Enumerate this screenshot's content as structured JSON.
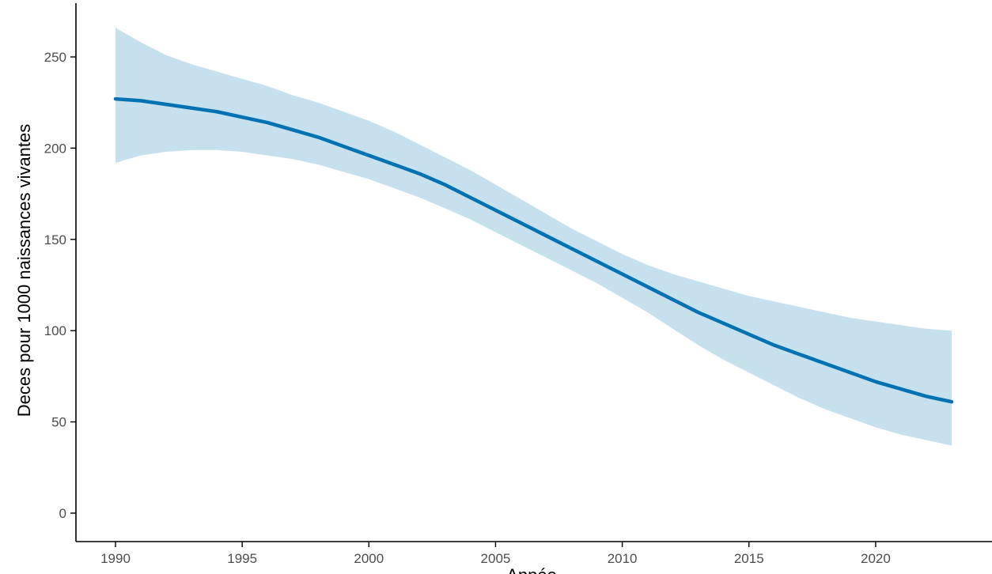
{
  "chart_data": {
    "type": "line",
    "title": "",
    "xlabel": "Année",
    "ylabel": "Deces pour 1000 naissances vivantes",
    "xlim": [
      1990,
      2023
    ],
    "ylim": [
      0,
      265
    ],
    "x_ticks": [
      1990,
      1995,
      2000,
      2005,
      2010,
      2015,
      2020
    ],
    "y_ticks": [
      0,
      50,
      100,
      150,
      200,
      250
    ],
    "grid": false,
    "legend": "none",
    "colors": {
      "line": "#0072b2",
      "band": "#c6e0ee"
    },
    "series": [
      {
        "x": [
          1990,
          1991,
          1992,
          1993,
          1994,
          1995,
          1996,
          1997,
          1998,
          1999,
          2000,
          2001,
          2002,
          2003,
          2004,
          2005,
          2006,
          2007,
          2008,
          2009,
          2010,
          2011,
          2012,
          2013,
          2014,
          2015,
          2016,
          2017,
          2018,
          2019,
          2020,
          2021,
          2022,
          2023
        ],
        "y": [
          227,
          226,
          224,
          222,
          220,
          217,
          214,
          210,
          206,
          201,
          196,
          191,
          186,
          180,
          173,
          166,
          159,
          152,
          145,
          138,
          131,
          124,
          117,
          110,
          104,
          98,
          92,
          87,
          82,
          77,
          72,
          68,
          64,
          61
        ],
        "lower": [
          192,
          196,
          198,
          199,
          199,
          198,
          196,
          194,
          191,
          187,
          183,
          178,
          173,
          167,
          161,
          154,
          147,
          140,
          133,
          126,
          118,
          110,
          101,
          92,
          84,
          77,
          70,
          63,
          57,
          52,
          47,
          43,
          40,
          37
        ],
        "upper": [
          266,
          258,
          251,
          246,
          242,
          238,
          234,
          229,
          225,
          220,
          215,
          209,
          202,
          195,
          188,
          180,
          172,
          164,
          156,
          149,
          142,
          136,
          131,
          127,
          123,
          119,
          116,
          113,
          110,
          107,
          105,
          103,
          101,
          100
        ]
      }
    ]
  }
}
